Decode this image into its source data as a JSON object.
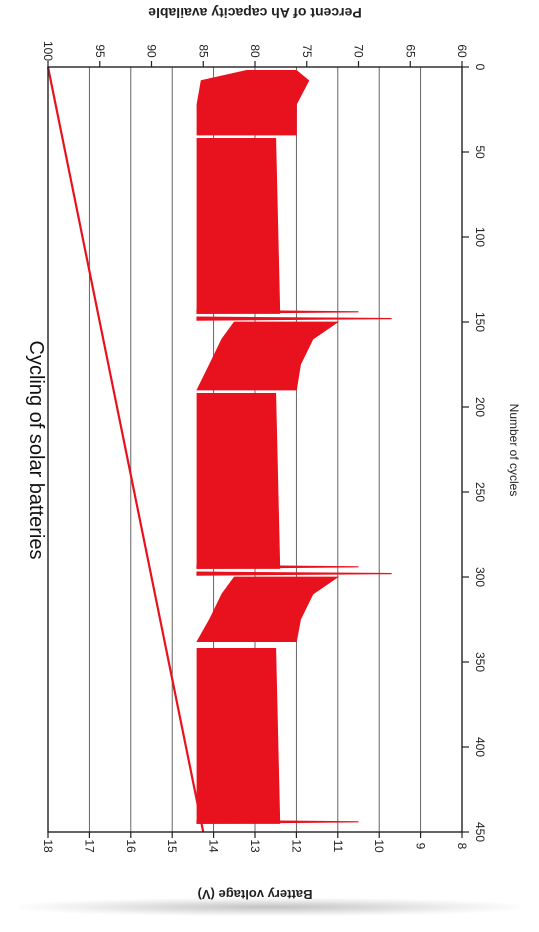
{
  "chart_data": {
    "type": "line",
    "title": "Cycling of solar batteries",
    "xlabel": "Number of cycles",
    "ylabel_left": "Battery voltage (V)",
    "ylabel_right": "Percent of Ah capacity available",
    "xlim": [
      0,
      450
    ],
    "ylim_left": [
      8,
      18
    ],
    "ylim_right": [
      60,
      100
    ],
    "x_ticks": [
      "0",
      "50",
      "100",
      "150",
      "200",
      "250",
      "300",
      "350",
      "400",
      "450"
    ],
    "y_left_ticks": [
      "8",
      "9",
      "10",
      "11",
      "12",
      "13",
      "14",
      "15",
      "16",
      "17",
      "18"
    ],
    "y_right_ticks": [
      "60",
      "65",
      "70",
      "75",
      "80",
      "85",
      "90",
      "95",
      "100"
    ],
    "grid": true,
    "series": [
      {
        "values_kind": "percent_capacity",
        "color": "#e8121f",
        "x": [
          0,
          450
        ],
        "y": [
          100,
          85
        ]
      },
      {
        "values_kind": "voltage_band",
        "color": "#e8121f",
        "segments": [
          {
            "x": [
              2,
              8,
              22
            ],
            "upper": [
              13.2,
              14.3,
              14.4
            ],
            "lower": [
              12.0,
              11.7,
              12.0
            ]
          },
          {
            "x": [
              22,
              40
            ],
            "upper": [
              14.4,
              14.4
            ],
            "lower": [
              12.0,
              12.0
            ]
          },
          {
            "x": [
              42,
              145
            ],
            "upper": [
              14.4,
              14.4
            ],
            "lower": [
              12.5,
              12.4
            ]
          },
          {
            "x": [
              150,
              160,
              175,
              190
            ],
            "upper": [
              13.5,
              13.8,
              14.1,
              14.4
            ],
            "lower": [
              11.0,
              11.6,
              11.9,
              12.0
            ]
          },
          {
            "x": [
              192,
              295
            ],
            "upper": [
              14.4,
              14.4
            ],
            "lower": [
              12.5,
              12.4
            ]
          },
          {
            "x": [
              300,
              310,
              325,
              338
            ],
            "upper": [
              13.5,
              13.8,
              14.1,
              14.4
            ],
            "lower": [
              11.0,
              11.6,
              11.9,
              12.0
            ]
          },
          {
            "x": [
              342,
              445
            ],
            "upper": [
              14.4,
              14.4
            ],
            "lower": [
              12.5,
              12.4
            ]
          }
        ],
        "spikes": [
          {
            "x": 144,
            "low": 10.5
          },
          {
            "x": 148,
            "low": 9.7
          },
          {
            "x": 294,
            "low": 10.5
          },
          {
            "x": 298,
            "low": 9.7
          },
          {
            "x": 444,
            "low": 10.5
          }
        ]
      }
    ]
  }
}
